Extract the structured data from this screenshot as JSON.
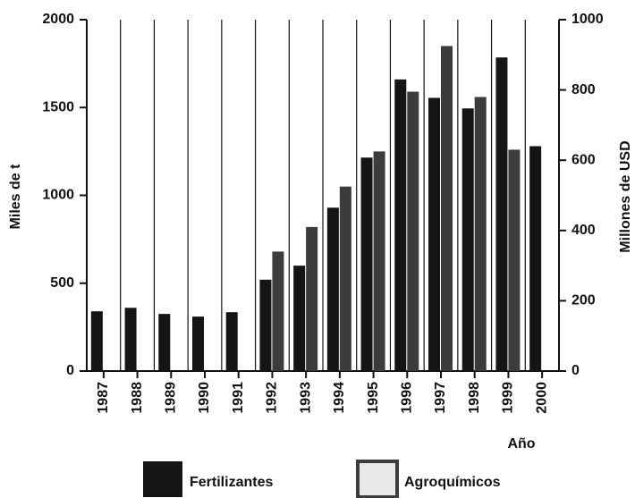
{
  "chart_data": {
    "type": "bar",
    "y_label": "Miles de t",
    "y2_label": "Millones de USD",
    "x_label": "Año",
    "categories": [
      "1987",
      "1988",
      "1989",
      "1990",
      "1991",
      "1992",
      "1993",
      "1994",
      "1995",
      "1996",
      "1997",
      "1998",
      "1999",
      "2000"
    ],
    "series": [
      {
        "name": "Fertilizantes",
        "color": "#151515",
        "values": [
          340,
          360,
          325,
          310,
          335,
          520,
          600,
          930,
          1215,
          1660,
          1555,
          1495,
          1785,
          1280
        ]
      },
      {
        "name": "Agroquímicos",
        "color": "#3c3c3c",
        "axis": "y2",
        "values": [
          null,
          null,
          null,
          null,
          null,
          340,
          410,
          525,
          625,
          795,
          925,
          780,
          630,
          null
        ]
      }
    ],
    "ylim": [
      0,
      2000
    ],
    "yticks": [
      0,
      500,
      1000,
      1500,
      2000
    ],
    "y2lim": [
      0,
      1000
    ],
    "y2ticks": [
      0,
      200,
      400,
      600,
      800,
      1000
    ],
    "legend": "bottom"
  }
}
